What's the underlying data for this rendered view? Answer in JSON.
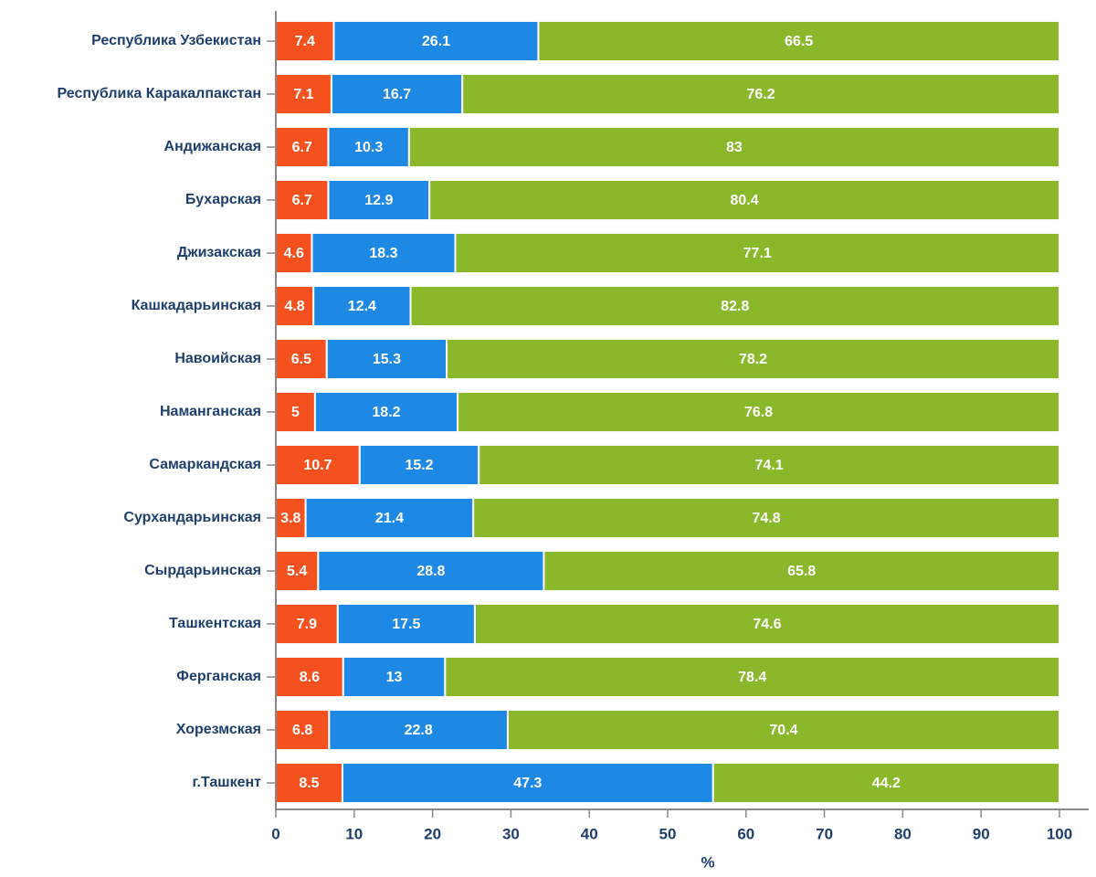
{
  "chart_data": {
    "type": "stacked_barh",
    "categories": [
      "Республика Узбекистан",
      "Республика Каракалпакстан",
      "Андижанская",
      "Бухарская",
      "Джизакская",
      "Кашкадарьинская",
      "Навоийская",
      "Наманганская",
      "Самаркандская",
      "Сурхандарьинская",
      "Сырдарьинская",
      "Ташкентская",
      "Ферганская",
      "Хорезмская",
      "г.Ташкент"
    ],
    "series": [
      {
        "color": "#f4511e",
        "values": [
          7.4,
          7.1,
          6.7,
          6.7,
          4.6,
          4.8,
          6.5,
          5,
          10.7,
          3.8,
          5.4,
          7.9,
          8.6,
          6.8,
          8.5
        ]
      },
      {
        "color": "#1e88e5",
        "values": [
          26.1,
          16.7,
          10.3,
          12.9,
          18.3,
          12.4,
          15.3,
          18.2,
          15.2,
          21.4,
          28.8,
          17.5,
          13,
          22.8,
          47.3
        ]
      },
      {
        "color": "#8ab82a",
        "values": [
          66.5,
          76.2,
          83,
          80.4,
          77.1,
          82.8,
          78.2,
          76.8,
          74.1,
          74.8,
          65.8,
          74.6,
          78.4,
          70.4,
          44.2
        ]
      }
    ],
    "xlabel": "%",
    "xlim": [
      0,
      100
    ],
    "xticks": [
      0,
      10,
      20,
      30,
      40,
      50,
      60,
      70,
      80,
      90,
      100
    ]
  }
}
